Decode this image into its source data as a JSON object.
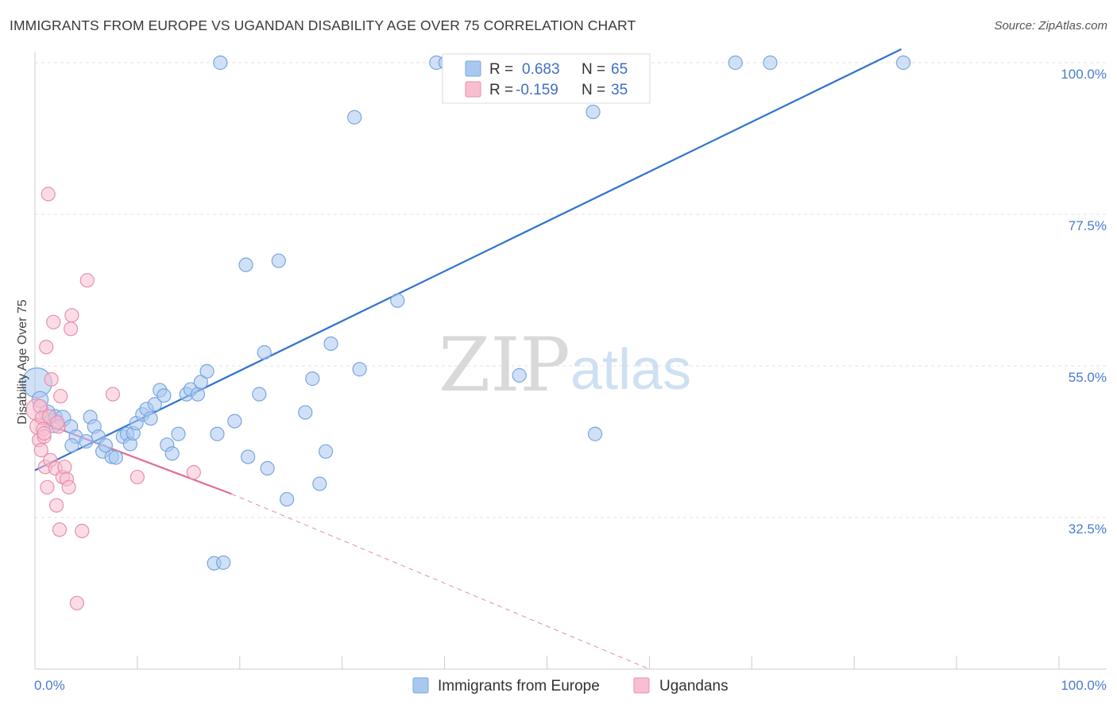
{
  "header": {
    "title": "IMMIGRANTS FROM EUROPE VS UGANDAN DISABILITY AGE OVER 75 CORRELATION CHART",
    "source": "Source: ZipAtlas.com"
  },
  "watermark": {
    "zip": "ZIP",
    "atlas": "atlas"
  },
  "legend": {
    "rows": [
      {
        "r_label": "R =",
        "r_value": "0.683",
        "n_label": "N =",
        "n_value": "65",
        "color": "#a9c8f0",
        "stroke": "#7aa6e0"
      },
      {
        "r_label": "R =",
        "r_value": "-0.159",
        "n_label": "N =",
        "n_value": "35",
        "color": "#f7bfd0",
        "stroke": "#e98fae"
      }
    ]
  },
  "bottom_legend": [
    {
      "label": "Immigrants from Europe",
      "color": "#a9c8f0",
      "stroke": "#7aa6e0"
    },
    {
      "label": "Ugandans",
      "color": "#f7bfd0",
      "stroke": "#e98fae"
    }
  ],
  "chart_data": {
    "type": "scatter",
    "title": "IMMIGRANTS FROM EUROPE VS UGANDAN DISABILITY AGE OVER 75 CORRELATION CHART",
    "xlabel": "",
    "ylabel": "Disability Age Over 75",
    "xlim": [
      0,
      100
    ],
    "ylim": [
      10,
      102
    ],
    "x_tick_labels": [
      "0.0%",
      "100.0%"
    ],
    "y_ticks": [
      {
        "value": 32.5,
        "label": "32.5%"
      },
      {
        "value": 55.0,
        "label": "55.0%"
      },
      {
        "value": 77.5,
        "label": "77.5%"
      },
      {
        "value": 100.0,
        "label": "100.0%"
      }
    ],
    "grid": true,
    "legend_position": "top-center",
    "series": [
      {
        "name": "Immigrants from Europe",
        "color": "#a9c8f0",
        "stroke": "#7aa6e0",
        "trend": {
          "x": [
            0,
            84.6
          ],
          "y": [
            39.5,
            102
          ],
          "color": "#2f72cf"
        },
        "points": [
          [
            0.2,
            52.5,
            22
          ],
          [
            0.5,
            50.0,
            12
          ],
          [
            1.2,
            48.0,
            12
          ],
          [
            1.8,
            46.5,
            14
          ],
          [
            2.0,
            47.5,
            10
          ],
          [
            2.7,
            47.2,
            12
          ],
          [
            3.5,
            46.0,
            10
          ],
          [
            4.0,
            44.5,
            10
          ],
          [
            3.6,
            43.2,
            10
          ],
          [
            5.0,
            43.8,
            10
          ],
          [
            5.4,
            47.4,
            10
          ],
          [
            5.8,
            46.0,
            10
          ],
          [
            6.2,
            44.5,
            10
          ],
          [
            6.6,
            42.3,
            10
          ],
          [
            6.9,
            43.2,
            10
          ],
          [
            7.5,
            41.5,
            10
          ],
          [
            7.9,
            41.4,
            10
          ],
          [
            8.6,
            44.5,
            10
          ],
          [
            9.0,
            44.9,
            10
          ],
          [
            9.3,
            43.4,
            10
          ],
          [
            9.6,
            45.0,
            10
          ],
          [
            9.9,
            46.5,
            10
          ],
          [
            10.5,
            47.8,
            10
          ],
          [
            10.9,
            48.6,
            10
          ],
          [
            11.3,
            47.2,
            10
          ],
          [
            11.7,
            49.3,
            10
          ],
          [
            12.2,
            51.4,
            10
          ],
          [
            12.6,
            50.6,
            10
          ],
          [
            12.9,
            43.3,
            10
          ],
          [
            13.4,
            42.0,
            10
          ],
          [
            14.0,
            44.9,
            10
          ],
          [
            14.8,
            50.8,
            10
          ],
          [
            15.2,
            51.5,
            10
          ],
          [
            15.9,
            50.8,
            10
          ],
          [
            16.2,
            52.6,
            10
          ],
          [
            16.8,
            54.2,
            10
          ],
          [
            17.8,
            44.9,
            10
          ],
          [
            19.5,
            46.8,
            10
          ],
          [
            20.6,
            70.0,
            10
          ],
          [
            20.8,
            41.5,
            10
          ],
          [
            21.9,
            50.8,
            10
          ],
          [
            22.4,
            57.0,
            10
          ],
          [
            22.7,
            39.8,
            10
          ],
          [
            23.8,
            70.6,
            10
          ],
          [
            24.6,
            35.2,
            10
          ],
          [
            26.4,
            48.1,
            10
          ],
          [
            27.1,
            53.1,
            10
          ],
          [
            27.8,
            37.5,
            10
          ],
          [
            28.4,
            42.3,
            10
          ],
          [
            28.9,
            58.3,
            10
          ],
          [
            31.2,
            91.9,
            10
          ],
          [
            31.7,
            54.5,
            10
          ],
          [
            35.4,
            64.7,
            10
          ],
          [
            47.3,
            53.6,
            10
          ],
          [
            54.7,
            44.9,
            10
          ],
          [
            18.1,
            100.0,
            10
          ],
          [
            39.2,
            100.0,
            10
          ],
          [
            40.1,
            100.0,
            10
          ],
          [
            45.1,
            100.0,
            10
          ],
          [
            54.5,
            92.7,
            10
          ],
          [
            68.4,
            100.0,
            10
          ],
          [
            71.8,
            100.0,
            10
          ],
          [
            84.8,
            100.0,
            10
          ],
          [
            17.5,
            25.7,
            10
          ],
          [
            18.4,
            25.8,
            10
          ]
        ]
      },
      {
        "name": "Ugandans",
        "color": "#f7bfd0",
        "stroke": "#e98fae",
        "trend": {
          "x": [
            0,
            19.2
          ],
          "y": [
            47.0,
            36.0
          ],
          "color": "#e06d96",
          "dash_to": {
            "x": 60.0,
            "y": 10.0
          }
        },
        "points": [
          [
            0.2,
            48.5,
            16
          ],
          [
            0.3,
            46.0,
            12
          ],
          [
            0.4,
            44.0,
            10
          ],
          [
            0.5,
            49.0,
            10
          ],
          [
            0.6,
            42.5,
            10
          ],
          [
            0.7,
            47.3,
            10
          ],
          [
            0.8,
            45.6,
            10
          ],
          [
            0.9,
            44.5,
            10
          ],
          [
            1.0,
            40.0,
            10
          ],
          [
            1.1,
            57.8,
            10
          ],
          [
            1.2,
            37.0,
            10
          ],
          [
            1.3,
            80.5,
            10
          ],
          [
            1.5,
            41.0,
            10
          ],
          [
            1.6,
            53.0,
            10
          ],
          [
            1.8,
            61.5,
            10
          ],
          [
            2.0,
            39.8,
            10
          ],
          [
            2.1,
            34.3,
            10
          ],
          [
            2.3,
            46.0,
            10
          ],
          [
            2.5,
            50.5,
            10
          ],
          [
            2.4,
            30.7,
            10
          ],
          [
            2.7,
            38.5,
            10
          ],
          [
            2.9,
            40.0,
            10
          ],
          [
            3.1,
            38.2,
            10
          ],
          [
            3.3,
            37.0,
            10
          ],
          [
            3.5,
            60.5,
            10
          ],
          [
            3.6,
            62.5,
            10
          ],
          [
            4.1,
            19.8,
            10
          ],
          [
            4.6,
            30.5,
            10
          ],
          [
            5.1,
            67.7,
            10
          ],
          [
            7.6,
            50.8,
            10
          ],
          [
            10.0,
            38.5,
            10
          ],
          [
            15.5,
            39.2,
            10
          ],
          [
            0.9,
            45.0,
            10
          ],
          [
            1.4,
            47.5,
            10
          ],
          [
            2.2,
            46.6,
            10
          ]
        ]
      }
    ]
  }
}
